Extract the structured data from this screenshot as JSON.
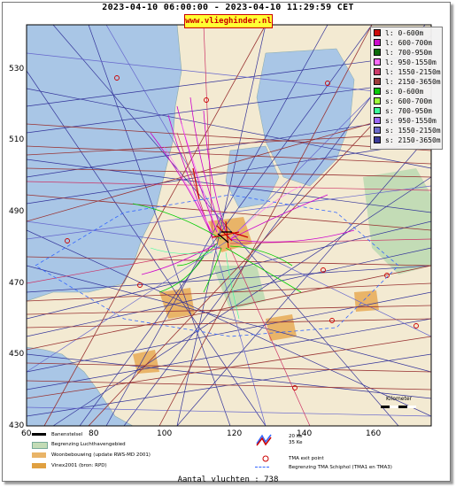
{
  "header": {
    "title": "2023-04-10 06:00:00 - 2023-04-10 11:29:59 CET",
    "banner": "www.vlieghinder.nl"
  },
  "axes": {
    "y_ticks": [
      "530",
      "510",
      "490",
      "470",
      "450",
      "430"
    ],
    "x_ticks": [
      "60",
      "80",
      "100",
      "120",
      "140",
      "160"
    ]
  },
  "legend": {
    "items": [
      {
        "label": "l: 0-600m",
        "color": "#cc0000"
      },
      {
        "label": "l: 600-700m",
        "color": "#cc00cc"
      },
      {
        "label": "l: 700-950m",
        "color": "#006600"
      },
      {
        "label": "l: 950-1550m",
        "color": "#ff66ff"
      },
      {
        "label": "l: 1550-2150m",
        "color": "#cc3366"
      },
      {
        "label": "l: 2150-3650m",
        "color": "#993333"
      },
      {
        "label": "s: 0-600m",
        "color": "#00cc00"
      },
      {
        "label": "s: 600-700m",
        "color": "#99ff33"
      },
      {
        "label": "s: 700-950m",
        "color": "#33ff99"
      },
      {
        "label": "s: 950-1550m",
        "color": "#9966ff"
      },
      {
        "label": "s: 1550-2150m",
        "color": "#6666cc"
      },
      {
        "label": "s: 2150-3650m",
        "color": "#333399"
      }
    ]
  },
  "bottom_legend": {
    "runway": "Banenstelsel",
    "airport_boundary": "Begrenzing Luchthavengebied",
    "housing": "Woonbebouwing (update RWS-MD 2001)",
    "vinex": "Vinex2001 (bron: RPD)",
    "kv_top": "20 Ke",
    "kv_bottom": "35 Ke",
    "tma_exit": "TMA exit point",
    "tma_boundary": "Begrenzing TMA Schiphol  (TMA1 en TMA3)"
  },
  "map": {
    "scale_label": "Kilometer"
  },
  "footer": {
    "count": "Aantal vluchten : 738"
  },
  "colors": {
    "sea": "#a9c6e6",
    "land": "#f3ead2",
    "urban": "#e9b468",
    "green": "#c3dcb6"
  }
}
